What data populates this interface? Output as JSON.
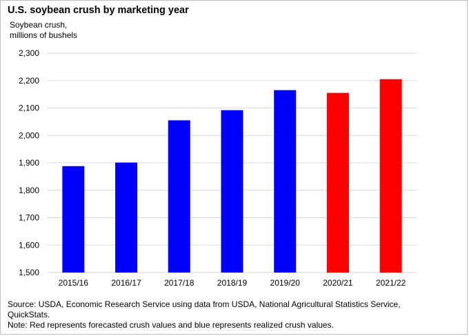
{
  "title": "U.S. soybean crush by marketing year",
  "chart_data": {
    "type": "bar",
    "title": "U.S. soybean crush by marketing year",
    "ylabel_lines": [
      "Soybean crush,",
      "millions of bushels"
    ],
    "xlabel": "",
    "categories": [
      "2015/16",
      "2016/17",
      "2017/18",
      "2018/19",
      "2019/20",
      "2020/21",
      "2021/22"
    ],
    "values": [
      1888,
      1901,
      2055,
      2092,
      2165,
      2155,
      2205
    ],
    "bar_colors": [
      "#0000ff",
      "#0000ff",
      "#0000ff",
      "#0000ff",
      "#0000ff",
      "#ff0000",
      "#ff0000"
    ],
    "ylim": [
      1500,
      2300
    ],
    "yticks": [
      1500,
      1600,
      1700,
      1800,
      1900,
      2000,
      2100,
      2200,
      2300
    ],
    "ytick_labels": [
      "1,500",
      "1,600",
      "1,700",
      "1,800",
      "1,900",
      "2,000",
      "2,100",
      "2,200",
      "2,300"
    ],
    "grid": true,
    "gridline_color": "#d9d9d9"
  },
  "footer": {
    "source_line1": "Source: USDA, Economic Research Service using data from USDA, National Agricultural Statistics Service,",
    "source_line2": "QuickStats.",
    "note": "Note: Red represents forecasted crush values and blue represents realized crush values."
  }
}
